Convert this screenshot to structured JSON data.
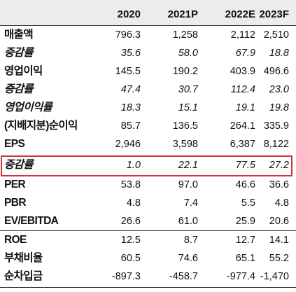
{
  "columns": [
    "2020",
    "2021P",
    "2022E",
    "2023F"
  ],
  "rows": [
    {
      "label": "매출액",
      "values": [
        "796.3",
        "1,258",
        "2,112",
        "2,510"
      ],
      "italic": false
    },
    {
      "label": "증감률",
      "values": [
        "35.6",
        "58.0",
        "67.9",
        "18.8"
      ],
      "italic": true
    },
    {
      "label": "영업이익",
      "values": [
        "145.5",
        "190.2",
        "403.9",
        "496.6"
      ],
      "italic": false
    },
    {
      "label": "증감률",
      "values": [
        "47.4",
        "30.7",
        "112.4",
        "23.0"
      ],
      "italic": true
    },
    {
      "label": "영업이익률",
      "values": [
        "18.3",
        "15.1",
        "19.1",
        "19.8"
      ],
      "italic": true
    },
    {
      "label": "(지배지분)순이익",
      "values": [
        "85.7",
        "136.5",
        "264.1",
        "335.9"
      ],
      "italic": false
    },
    {
      "label": "EPS",
      "values": [
        "2,946",
        "3,598",
        "6,387",
        "8,122"
      ],
      "italic": false
    },
    {
      "label": "증감률",
      "values": [
        "1.0",
        "22.1",
        "77.5",
        "27.2"
      ],
      "italic": true,
      "highlighted": true
    },
    {
      "label": "PER",
      "values": [
        "53.8",
        "97.0",
        "46.6",
        "36.6"
      ],
      "italic": false
    },
    {
      "label": "PBR",
      "values": [
        "4.8",
        "7.4",
        "5.5",
        "4.8"
      ],
      "italic": false
    },
    {
      "label": "EV/EBITDA",
      "values": [
        "26.6",
        "61.0",
        "25.9",
        "20.6"
      ],
      "italic": false
    },
    {
      "label": "ROE",
      "values": [
        "12.5",
        "8.7",
        "12.7",
        "14.1"
      ],
      "italic": false
    },
    {
      "label": "부채비율",
      "values": [
        "60.5",
        "74.6",
        "65.1",
        "55.2"
      ],
      "italic": false
    },
    {
      "label": "순차입금",
      "values": [
        "-897.3",
        "-458.7",
        "-977.4",
        "-1,470"
      ],
      "italic": false
    }
  ],
  "colors": {
    "header_bg": "#ececec",
    "highlight_border": "#d0343c",
    "rule": "#333333"
  }
}
